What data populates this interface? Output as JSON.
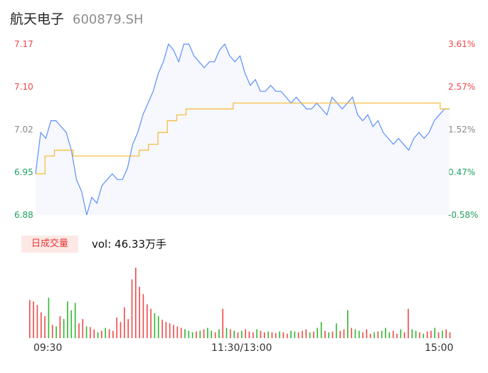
{
  "header": {
    "name": "航天电子",
    "code": "600879.SH"
  },
  "vol_badge": "日成交量",
  "vol_text": "vol: 46.33万手",
  "colors": {
    "price": "#5b8ff9",
    "avg": "#f5b931",
    "up": "#f04848",
    "down": "#2eb82e",
    "flat": "#888888"
  },
  "chart_data": {
    "type": "line",
    "y_left_ticks": [
      "7.17",
      "7.10",
      "7.02",
      "6.95",
      "6.88"
    ],
    "y_right_ticks": [
      "3.61%",
      "2.57%",
      "1.52%",
      "0.47%",
      "-0.58%"
    ],
    "x_tick_labels": [
      "09:30",
      "11:30/13:00",
      "15:00"
    ],
    "ylim": [
      6.88,
      7.17
    ],
    "prev_close": 6.92,
    "price": [
      6.95,
      7.02,
      7.01,
      7.04,
      7.04,
      7.03,
      7.02,
      6.99,
      6.94,
      6.92,
      6.88,
      6.91,
      6.9,
      6.93,
      6.94,
      6.95,
      6.94,
      6.94,
      6.96,
      7.0,
      7.02,
      7.05,
      7.07,
      7.09,
      7.12,
      7.14,
      7.17,
      7.16,
      7.14,
      7.17,
      7.17,
      7.15,
      7.14,
      7.13,
      7.14,
      7.14,
      7.16,
      7.17,
      7.15,
      7.14,
      7.15,
      7.12,
      7.1,
      7.11,
      7.09,
      7.09,
      7.1,
      7.09,
      7.09,
      7.08,
      7.07,
      7.08,
      7.07,
      7.06,
      7.06,
      7.07,
      7.06,
      7.05,
      7.08,
      7.07,
      7.06,
      7.07,
      7.08,
      7.05,
      7.04,
      7.05,
      7.03,
      7.04,
      7.02,
      7.01,
      7.0,
      7.01,
      7.0,
      6.99,
      7.01,
      7.02,
      7.01,
      7.02,
      7.04,
      7.05,
      7.06,
      7.06
    ],
    "avg": [
      6.95,
      6.98,
      6.99,
      6.99,
      6.98,
      6.98,
      6.98,
      6.98,
      6.98,
      6.98,
      6.98,
      6.99,
      7.0,
      7.02,
      7.04,
      7.05,
      7.06,
      7.06,
      7.06,
      7.06,
      7.06,
      7.07,
      7.07,
      7.07,
      7.07,
      7.07,
      7.07,
      7.07,
      7.07,
      7.07,
      7.07,
      7.07,
      7.07,
      7.07,
      7.07,
      7.07,
      7.07,
      7.07,
      7.07,
      7.07,
      7.07,
      7.07,
      7.07,
      7.06,
      7.06
    ],
    "volume": [
      52,
      50,
      45,
      35,
      30,
      55,
      18,
      16,
      30,
      26,
      50,
      38,
      48,
      20,
      26,
      16,
      15,
      12,
      8,
      10,
      14,
      12,
      10,
      28,
      22,
      42,
      26,
      80,
      96,
      70,
      60,
      46,
      40,
      34,
      30,
      25,
      22,
      20,
      18,
      16,
      14,
      12,
      10,
      8,
      9,
      10,
      12,
      14,
      10,
      8,
      12,
      40,
      14,
      12,
      10,
      8,
      10,
      12,
      9,
      8,
      12,
      10,
      8,
      9,
      8,
      7,
      9,
      8,
      6,
      10,
      9,
      8,
      10,
      12,
      8,
      9,
      14,
      22,
      10,
      8,
      9,
      20,
      10,
      12,
      38,
      14,
      12,
      10,
      8,
      12,
      6,
      8,
      9,
      10,
      14,
      8,
      10,
      6,
      12,
      8,
      40,
      12,
      10,
      8,
      6,
      9,
      10,
      14,
      8,
      10,
      12,
      8
    ],
    "volume_direction": [
      "up",
      "up",
      "up",
      "up",
      "up",
      "down",
      "up",
      "down",
      "up",
      "down",
      "down",
      "down",
      "down",
      "up",
      "up",
      "down",
      "up",
      "up",
      "down",
      "up",
      "down",
      "up",
      "up",
      "up",
      "up",
      "up",
      "up",
      "up",
      "up",
      "up",
      "up",
      "up",
      "up",
      "down",
      "down",
      "up",
      "up",
      "up",
      "up",
      "up",
      "up",
      "down",
      "down",
      "down",
      "up",
      "down",
      "up",
      "down",
      "down",
      "up",
      "down",
      "up",
      "down",
      "up",
      "down",
      "up",
      "down",
      "up",
      "up",
      "up",
      "down",
      "up",
      "up",
      "down",
      "up",
      "up",
      "down",
      "up",
      "up",
      "down",
      "down",
      "up",
      "up",
      "up",
      "down",
      "up",
      "down",
      "down",
      "up",
      "down",
      "up",
      "down",
      "up",
      "up",
      "down",
      "up",
      "down",
      "down",
      "up",
      "up",
      "up",
      "down",
      "up",
      "down",
      "down",
      "down",
      "up",
      "up",
      "down",
      "up",
      "up",
      "down",
      "down",
      "up",
      "down",
      "up",
      "up",
      "down",
      "up",
      "down",
      "up",
      "up"
    ]
  }
}
